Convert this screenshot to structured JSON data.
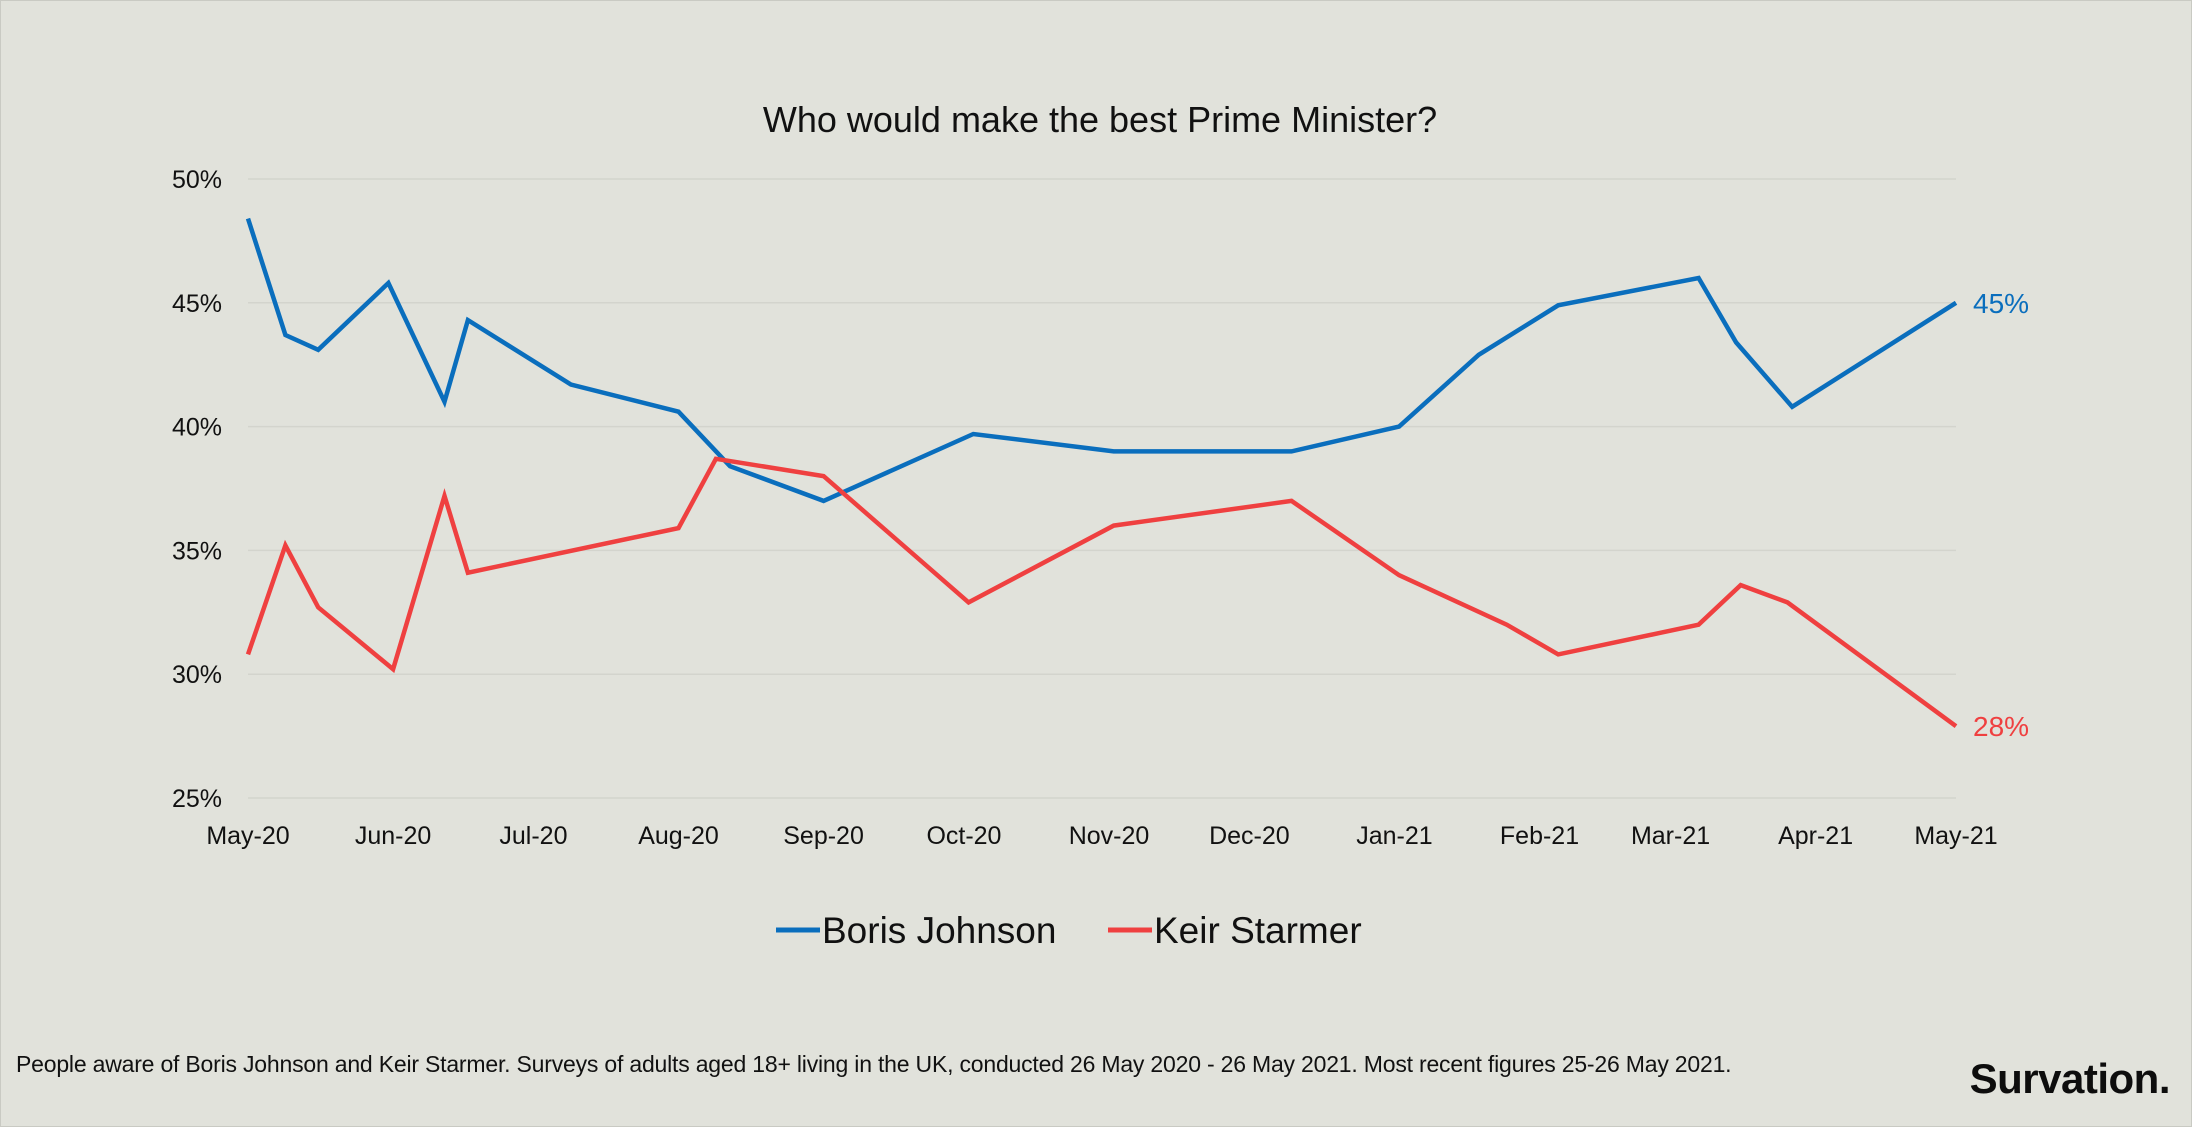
{
  "chart_data": {
    "type": "line",
    "title": "Who would make the best Prime Minister?",
    "xlabel": "",
    "ylabel": "",
    "ylim": [
      25,
      50
    ],
    "ytick_values": [
      25,
      30,
      35,
      40,
      45,
      50
    ],
    "ytick_labels": [
      "25%",
      "30%",
      "35%",
      "40%",
      "45%",
      "50%"
    ],
    "x_range": [
      "2020-05-26",
      "2021-05-26"
    ],
    "xtick_labels": [
      {
        "label": "May-20",
        "date": "2020-05-26"
      },
      {
        "label": "Jun-20",
        "date": "2020-06-26"
      },
      {
        "label": "Jul-20",
        "date": "2020-07-26"
      },
      {
        "label": "Aug-20",
        "date": "2020-08-26"
      },
      {
        "label": "Sep-20",
        "date": "2020-09-26"
      },
      {
        "label": "Oct-20",
        "date": "2020-10-26"
      },
      {
        "label": "Nov-20",
        "date": "2020-11-26"
      },
      {
        "label": "Dec-20",
        "date": "2020-12-26"
      },
      {
        "label": "Jan-21",
        "date": "2021-01-26"
      },
      {
        "label": "Feb-21",
        "date": "2021-02-26"
      },
      {
        "label": "Mar-21",
        "date": "2021-03-26"
      },
      {
        "label": "Apr-21",
        "date": "2021-04-26"
      },
      {
        "label": "May-21",
        "date": "2021-05-26"
      }
    ],
    "grid": true,
    "legend_position": "bottom-center",
    "series": [
      {
        "name": "Boris Johnson",
        "color": "#0a6ebd",
        "end_label": "45%",
        "points": [
          {
            "x": "2020-05-26",
            "y": 48.4
          },
          {
            "x": "2020-06-03",
            "y": 43.7
          },
          {
            "x": "2020-06-10",
            "y": 43.1
          },
          {
            "x": "2020-06-25",
            "y": 45.8
          },
          {
            "x": "2020-07-07",
            "y": 41.0
          },
          {
            "x": "2020-07-12",
            "y": 44.3
          },
          {
            "x": "2020-08-03",
            "y": 41.7
          },
          {
            "x": "2020-08-26",
            "y": 40.6
          },
          {
            "x": "2020-09-06",
            "y": 38.4
          },
          {
            "x": "2020-09-26",
            "y": 37.0
          },
          {
            "x": "2020-10-28",
            "y": 39.7
          },
          {
            "x": "2020-11-27",
            "y": 39.0
          },
          {
            "x": "2021-01-04",
            "y": 39.0
          },
          {
            "x": "2021-01-27",
            "y": 40.0
          },
          {
            "x": "2021-02-13",
            "y": 42.9
          },
          {
            "x": "2021-03-02",
            "y": 44.9
          },
          {
            "x": "2021-04-01",
            "y": 46.0
          },
          {
            "x": "2021-04-09",
            "y": 43.4
          },
          {
            "x": "2021-04-21",
            "y": 40.8
          },
          {
            "x": "2021-05-26",
            "y": 45.0
          }
        ]
      },
      {
        "name": "Keir Starmer",
        "color": "#ef4040",
        "end_label": "28%",
        "points": [
          {
            "x": "2020-05-26",
            "y": 30.8
          },
          {
            "x": "2020-06-03",
            "y": 35.2
          },
          {
            "x": "2020-06-10",
            "y": 32.7
          },
          {
            "x": "2020-06-26",
            "y": 30.2
          },
          {
            "x": "2020-07-07",
            "y": 37.2
          },
          {
            "x": "2020-07-12",
            "y": 34.1
          },
          {
            "x": "2020-08-26",
            "y": 35.9
          },
          {
            "x": "2020-09-03",
            "y": 38.7
          },
          {
            "x": "2020-09-26",
            "y": 38.0
          },
          {
            "x": "2020-10-27",
            "y": 32.9
          },
          {
            "x": "2020-11-27",
            "y": 36.0
          },
          {
            "x": "2021-01-04",
            "y": 37.0
          },
          {
            "x": "2021-01-27",
            "y": 34.0
          },
          {
            "x": "2021-02-19",
            "y": 32.0
          },
          {
            "x": "2021-03-02",
            "y": 30.8
          },
          {
            "x": "2021-04-01",
            "y": 32.0
          },
          {
            "x": "2021-04-10",
            "y": 33.6
          },
          {
            "x": "2021-04-20",
            "y": 32.9
          },
          {
            "x": "2021-05-26",
            "y": 27.9
          }
        ]
      }
    ]
  },
  "footnote": "People aware of Boris Johnson and Keir Starmer. Surveys of adults aged 18+ living in the UK, conducted 26 May 2020 - 26 May 2021.  Most recent figures 25-26 May 2021.",
  "brand": "Survation.",
  "colors": {
    "background": "#e1e2db",
    "gridline": "#d3d4cd",
    "text": "#111111"
  }
}
